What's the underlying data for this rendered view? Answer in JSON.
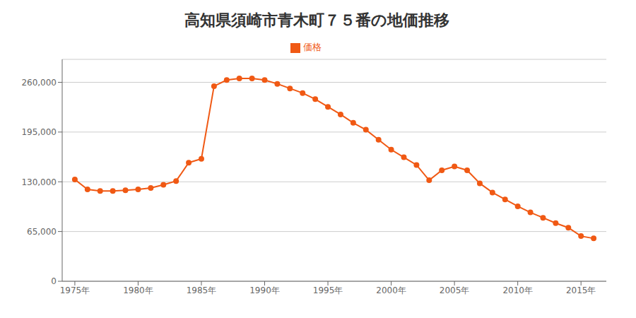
{
  "chart_data": {
    "type": "line",
    "title": "高知県須崎市青木町７５番の地価推移",
    "x": [
      1975,
      1976,
      1977,
      1978,
      1979,
      1980,
      1981,
      1982,
      1983,
      1984,
      1985,
      1986,
      1987,
      1988,
      1989,
      1990,
      1991,
      1992,
      1993,
      1994,
      1995,
      1996,
      1997,
      1998,
      1999,
      2000,
      2001,
      2002,
      2003,
      2004,
      2005,
      2006,
      2007,
      2008,
      2009,
      2010,
      2011,
      2012,
      2013,
      2014,
      2015,
      2016
    ],
    "series": [
      {
        "name": "価格",
        "color": "#F05914",
        "marker": "circle",
        "values": [
          133000,
          120000,
          118000,
          118000,
          119000,
          120000,
          122000,
          126000,
          131000,
          155000,
          160000,
          255000,
          263000,
          265000,
          265000,
          263000,
          258000,
          252000,
          246000,
          238000,
          228000,
          218000,
          207000,
          198000,
          185000,
          172000,
          162000,
          152000,
          132000,
          145000,
          150000,
          145000,
          128000,
          116000,
          107000,
          98000,
          90000,
          83000,
          76000,
          70000,
          59000,
          56000
        ]
      }
    ],
    "xlim": [
      1974,
      2017
    ],
    "xticks": [
      {
        "value": 1975,
        "label": "1975年"
      },
      {
        "value": 1980,
        "label": "1980年"
      },
      {
        "value": 1985,
        "label": "1985年"
      },
      {
        "value": 1990,
        "label": "1990年"
      },
      {
        "value": 1995,
        "label": "1995年"
      },
      {
        "value": 2000,
        "label": "2000年"
      },
      {
        "value": 2005,
        "label": "2005年"
      },
      {
        "value": 2010,
        "label": "2010年"
      },
      {
        "value": 2015,
        "label": "2015年"
      }
    ],
    "ylim": [
      0,
      290000
    ],
    "yticks": [
      0,
      {
        "value": 65000,
        "label": "65,000"
      },
      {
        "value": 130000,
        "label": "130,000"
      },
      {
        "value": 195000,
        "label": "195,000"
      },
      {
        "value": 260000,
        "label": "260,000"
      }
    ],
    "grid": true,
    "legend": "top"
  }
}
